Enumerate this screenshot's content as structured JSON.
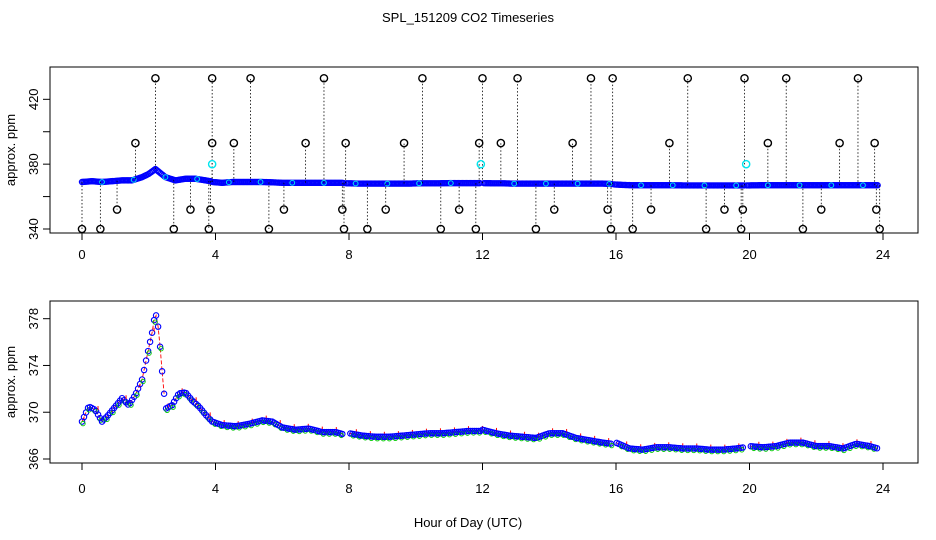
{
  "title": "SPL_151209  CO2 Timeseries",
  "shared_xlabel": "Hour of Day (UTC)",
  "colors": {
    "open_circle": "#000000",
    "blue": "#0000ff",
    "cyan": "#00e5ee",
    "green": "#00cc00",
    "red": "#ff0000"
  },
  "chart_data": [
    {
      "type": "scatter",
      "title": "",
      "xlabel": "",
      "ylabel": "approx. ppm",
      "xlim": [
        0,
        24
      ],
      "ylim": [
        340,
        435
      ],
      "xticks": [
        0,
        4,
        8,
        12,
        16,
        20,
        24
      ],
      "yticks": [
        340,
        360,
        380,
        400,
        420
      ],
      "ytick_labels": [
        "340",
        "",
        "380",
        "",
        "420"
      ],
      "grid": false,
      "series": [
        {
          "values_type": "co2",
          "x": [
            0.0,
            0.3,
            0.6,
            0.9,
            1.2,
            1.5,
            1.8,
            2.0,
            2.2,
            2.5,
            2.8,
            3.1,
            3.4,
            3.7,
            3.85,
            3.9,
            4.2,
            4.5,
            4.8,
            5.1,
            5.4,
            5.7,
            6.0,
            6.3,
            6.6,
            6.9,
            7.2,
            7.5,
            7.8,
            7.88,
            8.0,
            8.3,
            8.6,
            8.9,
            9.2,
            9.5,
            9.8,
            10.1,
            10.4,
            10.7,
            11.0,
            11.3,
            11.6,
            11.9,
            11.95,
            12.0,
            12.3,
            12.6,
            12.9,
            13.2,
            13.5,
            13.8,
            14.1,
            14.4,
            14.7,
            15.0,
            15.3,
            15.6,
            15.85,
            15.95,
            16.2,
            16.5,
            16.8,
            17.1,
            17.4,
            17.7,
            18.0,
            18.3,
            18.6,
            18.9,
            19.2,
            19.5,
            19.75,
            19.85,
            20.0,
            20.3,
            20.6,
            20.9,
            21.2,
            21.5,
            21.8,
            22.1,
            22.4,
            22.7,
            23.0,
            23.3,
            23.6,
            23.85
          ],
          "y": [
            369,
            369.5,
            369,
            369.5,
            370,
            370,
            372,
            374,
            377,
            372,
            370,
            371,
            371,
            370,
            369.5,
            369,
            368.5,
            369,
            369,
            369,
            369,
            368.8,
            368.5,
            368.5,
            368.5,
            368.5,
            368.5,
            368.5,
            368.5,
            368.2,
            368.2,
            368,
            368,
            368,
            368,
            368,
            368,
            368.2,
            368.2,
            368.2,
            368.3,
            368.3,
            368.3,
            368.3,
            368.3,
            368.3,
            368.2,
            368.2,
            368,
            368,
            368,
            368,
            368,
            368,
            368,
            368,
            368,
            368,
            367.8,
            367.5,
            367.2,
            367,
            367,
            367,
            367,
            367,
            366.9,
            366.9,
            366.9,
            366.9,
            366.9,
            366.9,
            366.9,
            366.9,
            366.9,
            367,
            367,
            367,
            367,
            367,
            367,
            367,
            367,
            367,
            367,
            367,
            367,
            367
          ]
        }
      ],
      "outliers": {
        "x": [
          0.0,
          0.55,
          1.05,
          1.6,
          2.2,
          2.75,
          3.25,
          3.8,
          3.85,
          3.9,
          3.9,
          4.55,
          5.05,
          5.6,
          6.05,
          6.7,
          7.25,
          7.8,
          7.85,
          7.9,
          8.55,
          9.1,
          9.65,
          10.2,
          10.75,
          11.3,
          11.8,
          11.9,
          12.0,
          12.55,
          13.05,
          13.6,
          14.15,
          14.7,
          15.25,
          15.75,
          15.85,
          15.9,
          16.5,
          17.05,
          17.6,
          18.15,
          18.7,
          19.25,
          19.75,
          19.8,
          19.85,
          20.55,
          21.1,
          21.6,
          22.15,
          22.7,
          23.25,
          23.75,
          23.8,
          23.9
        ],
        "y": [
          340,
          340,
          352,
          393,
          433,
          340,
          352,
          340,
          352,
          393,
          433,
          393,
          433,
          340,
          352,
          393,
          433,
          352,
          340,
          393,
          340,
          352,
          393,
          433,
          340,
          352,
          340,
          393,
          433,
          393,
          433,
          340,
          352,
          393,
          433,
          352,
          340,
          433,
          340,
          352,
          393,
          433,
          340,
          352,
          340,
          352,
          433,
          393,
          433,
          340,
          352,
          393,
          433,
          393,
          352,
          340
        ]
      },
      "highlights": {
        "x": [
          3.9,
          11.95,
          19.9
        ],
        "y": [
          380,
          380,
          380
        ]
      },
      "segments": [
        [
          0,
          3.9
        ],
        [
          3.9,
          7.85
        ],
        [
          7.9,
          11.95
        ],
        [
          12.0,
          15.9
        ],
        [
          15.95,
          19.85
        ],
        [
          19.9,
          23.85
        ]
      ]
    },
    {
      "type": "scatter",
      "title": "",
      "xlabel": "Hour of Day (UTC)",
      "ylabel": "approx. ppm",
      "xlim": [
        0,
        24
      ],
      "ylim": [
        366,
        379
      ],
      "xticks": [
        0,
        4,
        8,
        12,
        16,
        20,
        24
      ],
      "yticks": [
        366,
        370,
        374,
        378
      ],
      "ytick_labels": [
        "366",
        "370",
        "374",
        "378"
      ],
      "grid": false,
      "series": [
        {
          "x": [
            0.0,
            0.2,
            0.4,
            0.6,
            0.8,
            1.0,
            1.2,
            1.4,
            1.6,
            1.8,
            2.0,
            2.1,
            2.2,
            2.3,
            2.4,
            2.5,
            2.7,
            2.9,
            3.1,
            3.3,
            3.5,
            3.7,
            3.9,
            4.2,
            4.6,
            5.0,
            5.4,
            5.7,
            6.0,
            6.4,
            6.8,
            7.2,
            7.6,
            7.85,
            8.0,
            8.4,
            8.8,
            9.2,
            9.6,
            10.0,
            10.4,
            10.8,
            11.2,
            11.6,
            11.95,
            12.0,
            12.4,
            12.8,
            13.2,
            13.6,
            14.0,
            14.4,
            14.8,
            15.2,
            15.6,
            15.9,
            16.0,
            16.4,
            16.8,
            17.2,
            17.6,
            18.0,
            18.4,
            18.8,
            19.2,
            19.6,
            19.85,
            20.0,
            20.4,
            20.8,
            21.2,
            21.6,
            22.0,
            22.4,
            22.8,
            23.2,
            23.6,
            23.85
          ],
          "y": [
            369.2,
            370.5,
            370.2,
            369.2,
            369.8,
            370.5,
            371.2,
            370.6,
            371.5,
            372.8,
            375.5,
            376.8,
            378.6,
            377.0,
            373.5,
            370.3,
            370.6,
            371.6,
            371.7,
            371.0,
            370.5,
            369.8,
            369.2,
            368.9,
            368.8,
            369.0,
            369.3,
            369.2,
            368.7,
            368.5,
            368.6,
            368.3,
            368.3,
            368.1,
            368.2,
            368.0,
            367.9,
            367.9,
            368.0,
            368.1,
            368.2,
            368.2,
            368.3,
            368.4,
            368.4,
            368.5,
            368.2,
            368.0,
            367.9,
            367.8,
            368.2,
            368.2,
            367.8,
            367.6,
            367.4,
            367.3,
            367.4,
            366.9,
            366.8,
            367.0,
            367.0,
            366.9,
            366.9,
            366.8,
            366.8,
            366.9,
            367.0,
            367.1,
            367.0,
            367.1,
            367.4,
            367.4,
            367.1,
            367.1,
            366.9,
            367.3,
            367.1,
            366.9
          ]
        }
      ],
      "segments": [
        [
          0,
          2.5
        ],
        [
          2.5,
          3.9
        ],
        [
          3.9,
          7.85
        ],
        [
          8.0,
          11.95
        ],
        [
          12.0,
          15.9
        ],
        [
          16.0,
          19.85
        ],
        [
          20.0,
          23.85
        ]
      ]
    }
  ]
}
